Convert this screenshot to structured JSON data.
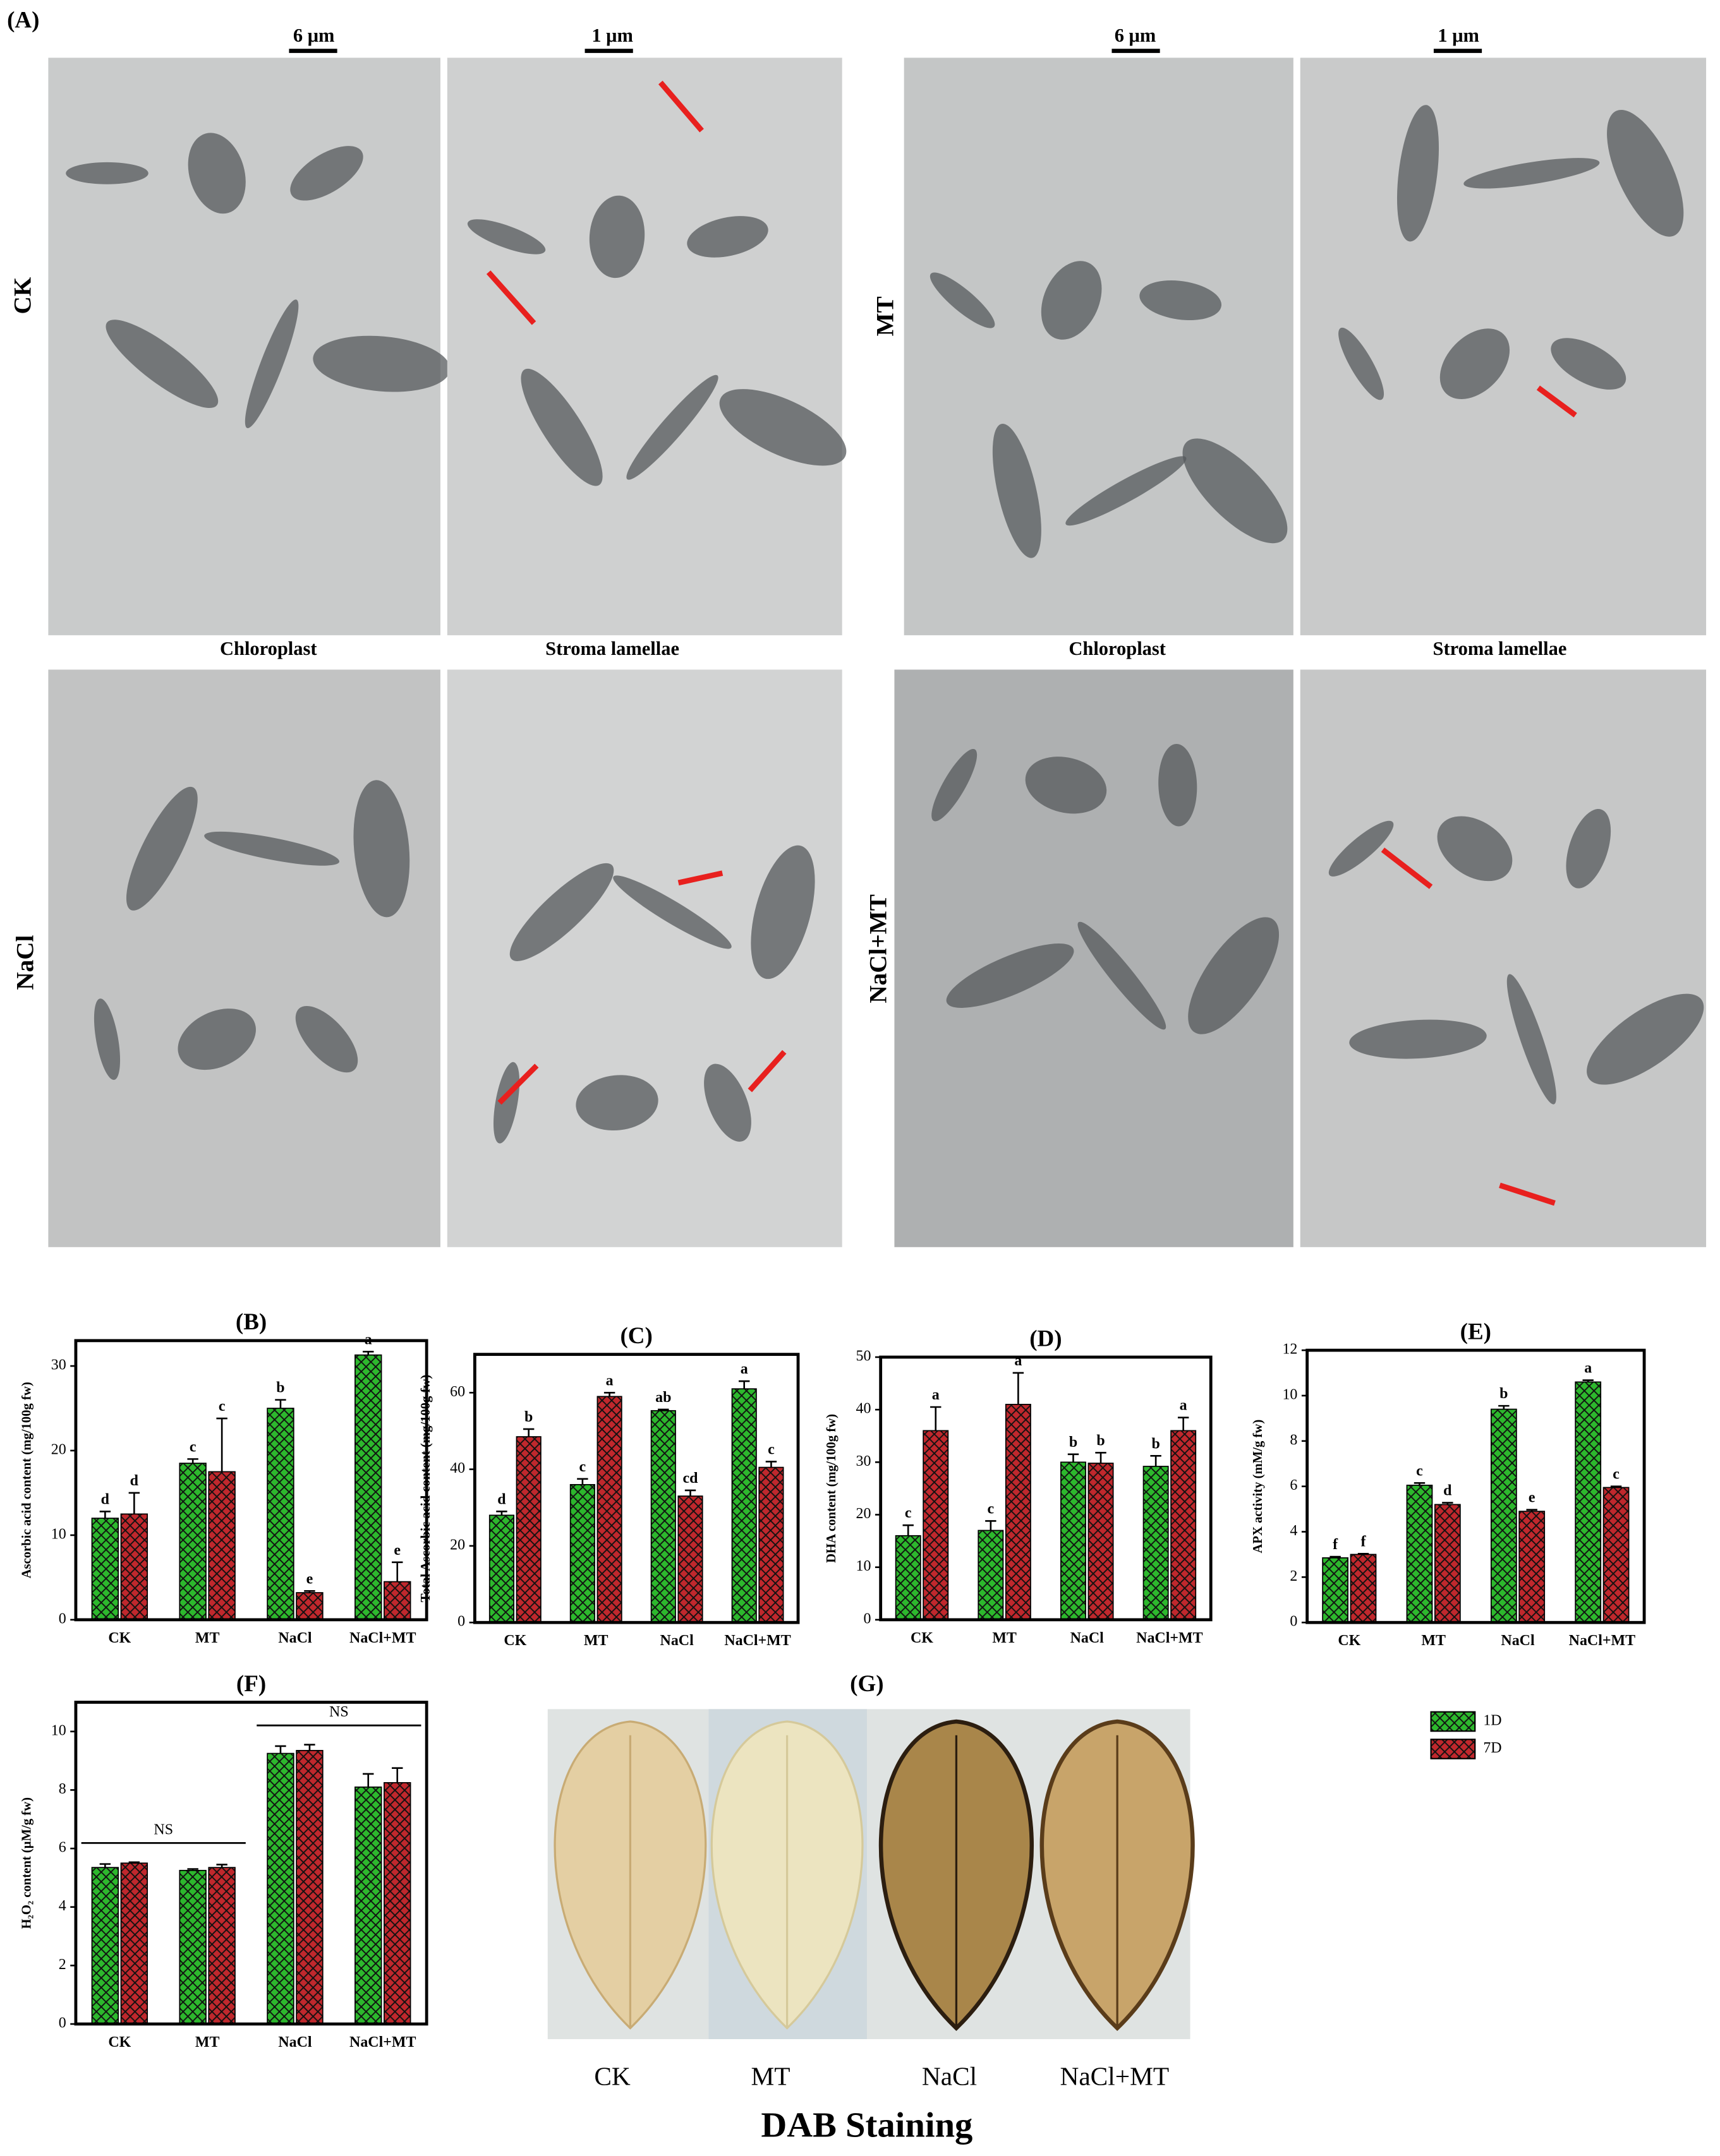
{
  "panel_a": {
    "label": "(A)",
    "scale_bars": [
      "6 μm",
      "1 μm",
      "6 μm",
      "1 μm"
    ],
    "rows": [
      "CK",
      "MT",
      "NaCl",
      "NaCl+MT"
    ],
    "columns": [
      "Chloroplast",
      "Stroma lamellae",
      "Chloroplast",
      "Stroma lamellae"
    ]
  },
  "legend": [
    {
      "name": "1D",
      "color": "#2db82d"
    },
    {
      "name": "7D",
      "color": "#c0282d"
    }
  ],
  "chart_data": [
    {
      "type": "bar",
      "title": "(B)",
      "ylabel": "Ascorbic acid content (mg/100g fw)",
      "categories": [
        "CK",
        "MT",
        "NaCl",
        "NaCl+MT"
      ],
      "ylim": [
        0,
        33
      ],
      "yticks": [
        0,
        10,
        20,
        30
      ],
      "series": [
        {
          "values": [
            12,
            18.5,
            25,
            31.3
          ],
          "errors": [
            0.8,
            0.5,
            1,
            0.4
          ],
          "letters": [
            "d",
            "c",
            "b",
            "a"
          ]
        },
        {
          "values": [
            12.5,
            17.5,
            3.2,
            4.5
          ],
          "errors": [
            2.5,
            6.3,
            0.2,
            2.3
          ],
          "letters": [
            "d",
            "c",
            "e",
            "e"
          ]
        }
      ]
    },
    {
      "type": "bar",
      "title": "(C)",
      "ylabel": "Total Ascorbic acid content (mg/100g fw)",
      "categories": [
        "CK",
        "MT",
        "NaCl",
        "NaCl+MT"
      ],
      "ylim": [
        0,
        70
      ],
      "yticks": [
        0,
        20,
        40,
        60
      ],
      "series": [
        {
          "values": [
            28,
            36,
            55.3,
            61
          ],
          "errors": [
            1,
            1.5,
            0.3,
            2
          ],
          "letters": [
            "d",
            "c",
            "ab",
            "a"
          ]
        },
        {
          "values": [
            48.5,
            59,
            33,
            40.5
          ],
          "errors": [
            2,
            1,
            1.5,
            1.5
          ],
          "letters": [
            "b",
            "a",
            "cd",
            "c"
          ]
        }
      ]
    },
    {
      "type": "bar",
      "title": "(D)",
      "ylabel": "DHA content (mg/100g fw)",
      "categories": [
        "CK",
        "MT",
        "NaCl",
        "NaCl+MT"
      ],
      "ylim": [
        0,
        50
      ],
      "yticks": [
        0,
        10,
        20,
        30,
        40,
        50
      ],
      "series": [
        {
          "values": [
            16,
            17,
            30,
            29.2
          ],
          "errors": [
            2,
            1.8,
            1.5,
            2
          ],
          "letters": [
            "c",
            "c",
            "b",
            "b"
          ]
        },
        {
          "values": [
            36,
            41,
            29.8,
            36
          ],
          "errors": [
            4.5,
            6,
            2,
            2.5
          ],
          "letters": [
            "a",
            "a",
            "b",
            "a"
          ]
        }
      ]
    },
    {
      "type": "bar",
      "title": "(E)",
      "ylabel": "APX activity (mM/g fw)",
      "categories": [
        "CK",
        "MT",
        "NaCl",
        "NaCl+MT"
      ],
      "ylim": [
        0,
        12
      ],
      "yticks": [
        0,
        2,
        4,
        6,
        8,
        10,
        12
      ],
      "series": [
        {
          "values": [
            2.85,
            6.05,
            9.4,
            10.6
          ],
          "errors": [
            0.05,
            0.1,
            0.15,
            0.08
          ],
          "letters": [
            "f",
            "c",
            "b",
            "a"
          ]
        },
        {
          "values": [
            3.0,
            5.2,
            4.9,
            5.95
          ],
          "errors": [
            0.03,
            0.08,
            0.07,
            0.05
          ],
          "letters": [
            "f",
            "d",
            "e",
            "c"
          ]
        }
      ]
    },
    {
      "type": "bar",
      "title": "(F)",
      "ylabel": "H₂O₂ content (μM/g fw)",
      "categories": [
        "CK",
        "MT",
        "NaCl",
        "NaCl+MT"
      ],
      "ylim": [
        0,
        11
      ],
      "yticks": [
        0,
        2,
        4,
        6,
        8,
        10
      ],
      "series": [
        {
          "values": [
            5.35,
            5.25,
            9.25,
            8.1
          ],
          "errors": [
            0.12,
            0.05,
            0.25,
            0.45
          ]
        },
        {
          "values": [
            5.5,
            5.35,
            9.35,
            8.25
          ],
          "errors": [
            0.03,
            0.1,
            0.2,
            0.5
          ]
        }
      ],
      "annotations": [
        {
          "text": "NS",
          "span": [
            0,
            1
          ]
        },
        {
          "text": "NS",
          "span": [
            2,
            3
          ]
        }
      ]
    }
  ],
  "panel_g": {
    "label": "(G)",
    "leaves": [
      "CK",
      "MT",
      "NaCl",
      "NaCl+MT"
    ],
    "caption": "DAB Staining"
  }
}
